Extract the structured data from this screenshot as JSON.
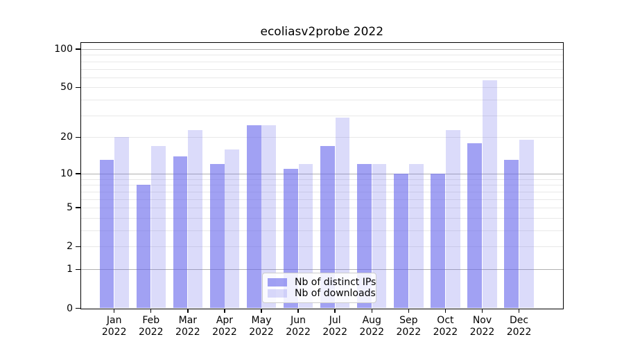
{
  "title": "ecoliasv2probe 2022",
  "chart_data": {
    "type": "bar",
    "title": "ecoliasv2probe 2022",
    "categories": [
      "Jan",
      "Feb",
      "Mar",
      "Apr",
      "May",
      "Jun",
      "Jul",
      "Aug",
      "Sep",
      "Oct",
      "Nov",
      "Dec"
    ],
    "category_year": "2022",
    "series": [
      {
        "name": "Nb of distinct IPs",
        "color": "#a6a6f2",
        "values": [
          13,
          8,
          14,
          12,
          25,
          11,
          17,
          12,
          10,
          10,
          18,
          13
        ]
      },
      {
        "name": "Nb of downloads",
        "color": "#dcdcf8",
        "values": [
          20,
          17,
          23,
          16,
          25,
          12,
          29,
          12,
          12,
          23,
          57,
          19
        ]
      }
    ],
    "xlabel": "",
    "ylabel": "",
    "yscale": "log1p",
    "ylim": [
      0,
      112
    ],
    "yticks": [
      100,
      50,
      20,
      10,
      5,
      2,
      1,
      0
    ],
    "ytick_labels": [
      "100",
      "50",
      "20",
      "10",
      "5",
      "2",
      "1",
      "0"
    ],
    "minor_gridlines": [
      2,
      3,
      4,
      5,
      6,
      7,
      8,
      9,
      20,
      30,
      40,
      50,
      60,
      70,
      80,
      90
    ],
    "major_gridlines": [
      1,
      10,
      100
    ],
    "grid": "horizontal",
    "legend_position": "lower center inside",
    "colors": {
      "bar_base": "#6868eb",
      "minor_grid": "#e8e8e8",
      "major_grid": "#b0b0b0",
      "frame": "#000000",
      "background": "#ffffff"
    }
  }
}
